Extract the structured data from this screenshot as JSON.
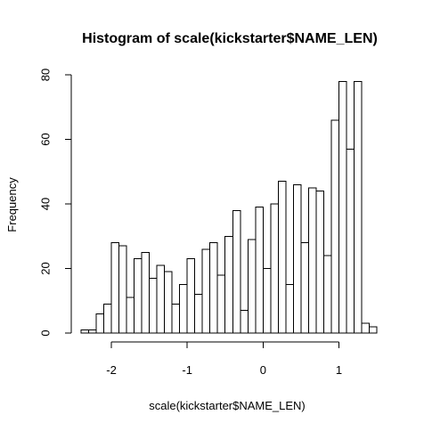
{
  "chart_data": {
    "type": "bar",
    "title": "Histogram of scale(kickstarter$NAME_LEN)",
    "xlabel": "scale(kickstarter$NAME_LEN)",
    "ylabel": "Frequency",
    "bin_start": -2.4,
    "bin_width": 0.1,
    "values": [
      1,
      1,
      6,
      9,
      28,
      27,
      11,
      23,
      25,
      17,
      21,
      19,
      9,
      15,
      23,
      12,
      26,
      28,
      18,
      30,
      38,
      7,
      29,
      39,
      20,
      40,
      47,
      15,
      46,
      28,
      45,
      44,
      24,
      66,
      78,
      57,
      78,
      3,
      2
    ],
    "xlim": [
      -2.4,
      1.5
    ],
    "ylim": [
      0,
      80
    ],
    "x_ticks": [
      -2,
      -1,
      0,
      1
    ],
    "x_tick_labels": [
      "-2",
      "-1",
      "0",
      "1"
    ],
    "y_ticks": [
      0,
      20,
      40,
      60,
      80
    ],
    "y_tick_labels": [
      "0",
      "20",
      "40",
      "60",
      "80"
    ],
    "grid": false,
    "legend": "none"
  }
}
